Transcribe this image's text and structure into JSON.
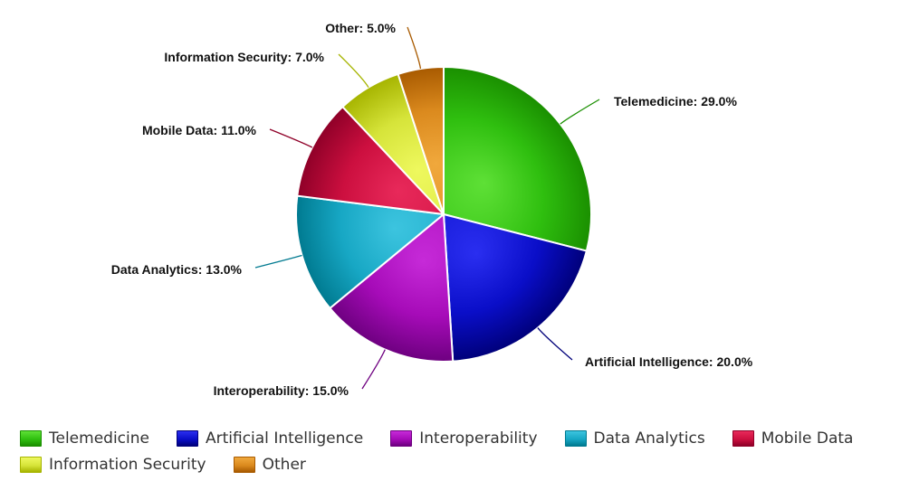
{
  "chart_data": {
    "type": "pie",
    "title": "",
    "unit": "%",
    "start_angle_deg": 0,
    "direction": "clockwise",
    "slices": [
      {
        "label": "Telemedicine",
        "value": 29.0,
        "text": "Telemedicine: 29.0%",
        "color": "#2fbf0f",
        "dark": "#1a8f00",
        "light": "#5ee036",
        "legend_row": 0
      },
      {
        "label": "Artificial Intelligence",
        "value": 20.0,
        "text": "Artificial Intelligence: 20.0%",
        "color": "#0a0ec8",
        "dark": "#00007a",
        "light": "#2a2ef0",
        "legend_row": 0
      },
      {
        "label": "Interoperability",
        "value": 15.0,
        "text": "Interoperability: 15.0%",
        "color": "#a60bb8",
        "dark": "#6e0080",
        "light": "#c62ad8",
        "legend_row": 0
      },
      {
        "label": "Data Analytics",
        "value": 13.0,
        "text": "Data Analytics: 13.0%",
        "color": "#17a7c4",
        "dark": "#007a90",
        "light": "#3cc4df",
        "legend_row": 0
      },
      {
        "label": "Mobile Data",
        "value": 11.0,
        "text": "Mobile Data: 11.0%",
        "color": "#cc0f3f",
        "dark": "#8f0028",
        "light": "#e8295a",
        "legend_row": 0
      },
      {
        "label": "Information Security",
        "value": 7.0,
        "text": "Information Security: 7.0%",
        "color": "#d6e43a",
        "dark": "#a6b400",
        "light": "#eef85e",
        "legend_row": 1
      },
      {
        "label": "Other",
        "value": 5.0,
        "text": "Other: 5.0%",
        "color": "#db8a1e",
        "dark": "#a85a00",
        "light": "#f0a83c",
        "legend_row": 1
      }
    ]
  }
}
